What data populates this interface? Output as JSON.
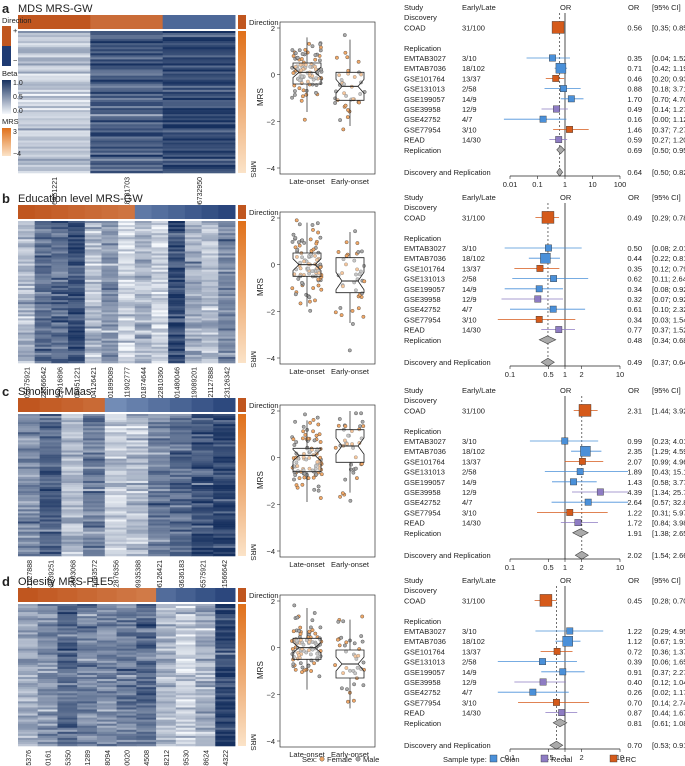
{
  "colors": {
    "direction_pos": "#c0561f",
    "direction_neg": "#1f3b73",
    "beta_high": "#16305f",
    "beta_low": "#f5f8fc",
    "mrs_high": "#e0701a",
    "mrs_low": "#fbe3c8",
    "female": "#f0a868",
    "male": "#a8a8a8",
    "colon": "#4a90d9",
    "rectal": "#8e7cc3",
    "crc": "#d55a1a",
    "or_line": "#444444"
  },
  "legend_heatmap": {
    "direction_label": "Direction",
    "direction_plus": "+",
    "direction_minus": "−",
    "beta_label": "Beta",
    "beta_ticks": [
      "1.0",
      "0.5",
      "0.0"
    ],
    "mrs_label": "MRS",
    "mrs_ticks": [
      "3",
      "−4"
    ]
  },
  "forest_header": {
    "study": "Study",
    "early_late": "Early/Late",
    "or": "OR",
    "ci": "[95% CI]",
    "discovery": "Discovery",
    "replication": "Replication"
  },
  "studies": [
    "COAD",
    "EMTAB3027",
    "EMTAB7036",
    "GSE101764",
    "GSE131013",
    "GSE199057",
    "GSE39958",
    "GSE42752",
    "GSE77954",
    "READ",
    "Replication",
    "Discovery and Replication"
  ],
  "early_late": [
    "31/100",
    "3/10",
    "18/102",
    "13/37",
    "2/58",
    "14/9",
    "12/9",
    "4/7",
    "3/10",
    "14/30"
  ],
  "sample_types": [
    "CRC",
    "Colon",
    "Colon",
    "CRC",
    "Colon",
    "Colon",
    "Rectal",
    "Colon",
    "CRC",
    "Rectal"
  ],
  "boxplot_axis": {
    "ylabel": "MRS",
    "xlabels": [
      "Late-onset",
      "Early-onset"
    ]
  },
  "legend_bottom": {
    "sex_label": "Sex:",
    "female": "Female",
    "male": "Male",
    "sample_label": "Sample type:",
    "colon": "Colon",
    "rectal": "Rectal",
    "crc": "CRC"
  },
  "chart_data": [
    {
      "panel": "a",
      "title": "MDS MRS-GW",
      "type": "heatmap",
      "cpgs": [
        "cg05951221",
        "cg18181703",
        "cg06732950"
      ],
      "direction": [
        "+",
        "+",
        "−"
      ],
      "boxplot": {
        "ylim": [
          -4,
          2
        ],
        "yticks": [
          2,
          0,
          -2,
          -4
        ],
        "late": {
          "median": 0.1,
          "q1": -0.4,
          "q3": 0.5,
          "whisker_low": -1.6,
          "whisker_high": 1.6
        },
        "early": {
          "median": -0.5,
          "q1": -1.1,
          "q3": 0.1,
          "whisker_low": -2.2,
          "whisker_high": 1.5
        }
      },
      "forest": {
        "scale": "log",
        "ticks": [
          0.01,
          0.1,
          1,
          10,
          100
        ],
        "tick_labels": [
          "0.01",
          "0.1",
          "1",
          "10",
          "100"
        ],
        "rows": [
          {
            "study": "COAD",
            "or": 0.56,
            "ci": [
              0.35,
              0.85
            ],
            "or_text": "0.56",
            "ci_text": "[0.35; 0.85]"
          },
          {
            "study": "EMTAB3027",
            "or": 0.35,
            "ci": [
              0.04,
              1.52
            ],
            "or_text": "0.35",
            "ci_text": "[0.04; 1.52]"
          },
          {
            "study": "EMTAB7036",
            "or": 0.71,
            "ci": [
              0.42,
              1.19
            ],
            "or_text": "0.71",
            "ci_text": "[0.42; 1.19]"
          },
          {
            "study": "GSE101764",
            "or": 0.46,
            "ci": [
              0.2,
              0.93
            ],
            "or_text": "0.46",
            "ci_text": "[0.20; 0.93]"
          },
          {
            "study": "GSE131013",
            "or": 0.88,
            "ci": [
              0.18,
              3.71
            ],
            "or_text": "0.88",
            "ci_text": "[0.18; 3.71]"
          },
          {
            "study": "GSE199057",
            "or": 1.7,
            "ci": [
              0.7,
              4.7
            ],
            "or_text": "1.70",
            "ci_text": "[0.70; 4.70]"
          },
          {
            "study": "GSE39958",
            "or": 0.49,
            "ci": [
              0.14,
              1.27
            ],
            "or_text": "0.49",
            "ci_text": "[0.14; 1.27]"
          },
          {
            "study": "GSE42752",
            "or": 0.16,
            "ci": [
              0.0,
              1.12
            ],
            "or_text": "0.16",
            "ci_text": "[0.00; 1.12]"
          },
          {
            "study": "GSE77954",
            "or": 1.46,
            "ci": [
              0.37,
              7.27
            ],
            "or_text": "1.46",
            "ci_text": "[0.37; 7.27]"
          },
          {
            "study": "READ",
            "or": 0.59,
            "ci": [
              0.27,
              1.2
            ],
            "or_text": "0.59",
            "ci_text": "[0.27; 1.20]"
          },
          {
            "study": "Replication",
            "or": 0.69,
            "ci": [
              0.5,
              0.95
            ],
            "or_text": "0.69",
            "ci_text": "[0.50; 0.95]"
          },
          {
            "study": "Discovery and Replication",
            "or": 0.64,
            "ci": [
              0.5,
              0.82
            ],
            "or_text": "0.64",
            "ci_text": "[0.50; 0.82]"
          }
        ]
      }
    },
    {
      "panel": "b",
      "title": "Education level MRS-GW",
      "type": "heatmap",
      "cpgs": [
        "cg05575921",
        "cg21566642",
        "cg23916896",
        "cg05951221",
        "cg04126421",
        "cg01899089",
        "cg11902777",
        "cg01874644",
        "cg22810360",
        "cg01480046",
        "cg19089201",
        "cg21127888",
        "cg23126342"
      ],
      "direction": [
        "+",
        "+",
        "+",
        "+",
        "+",
        "+",
        "+",
        "−",
        "−",
        "−",
        "−",
        "−",
        "−"
      ],
      "boxplot": {
        "ylim": [
          -4,
          2
        ],
        "yticks": [
          2,
          0,
          -2,
          -4
        ],
        "late": {
          "median": 0.0,
          "q1": -0.5,
          "q3": 0.5,
          "whisker_low": -1.8,
          "whisker_high": 1.8
        },
        "early": {
          "median": -0.7,
          "q1": -1.2,
          "q3": 0.3,
          "whisker_low": -2.5,
          "whisker_high": 1.4
        }
      },
      "forest": {
        "scale": "log",
        "ticks": [
          0.1,
          0.5,
          1,
          2,
          10
        ],
        "tick_labels": [
          "0.1",
          "0.5",
          "1",
          "2",
          "10"
        ],
        "rows": [
          {
            "study": "COAD",
            "or": 0.49,
            "ci": [
              0.29,
              0.78
            ],
            "or_text": "0.49",
            "ci_text": "[0.29; 0.78]"
          },
          {
            "study": "EMTAB3027",
            "or": 0.5,
            "ci": [
              0.08,
              2.01
            ],
            "or_text": "0.50",
            "ci_text": "[0.08; 2.01]"
          },
          {
            "study": "EMTAB7036",
            "or": 0.44,
            "ci": [
              0.22,
              0.81
            ],
            "or_text": "0.44",
            "ci_text": "[0.22; 0.81]"
          },
          {
            "study": "GSE101764",
            "or": 0.35,
            "ci": [
              0.12,
              0.79
            ],
            "or_text": "0.35",
            "ci_text": "[0.12; 0.79]"
          },
          {
            "study": "GSE131013",
            "or": 0.62,
            "ci": [
              0.11,
              2.64
            ],
            "or_text": "0.62",
            "ci_text": "[0.11; 2.64]"
          },
          {
            "study": "GSE199057",
            "or": 0.34,
            "ci": [
              0.08,
              0.92
            ],
            "or_text": "0.34",
            "ci_text": "[0.08; 0.92]"
          },
          {
            "study": "GSE39958",
            "or": 0.32,
            "ci": [
              0.07,
              0.92
            ],
            "or_text": "0.32",
            "ci_text": "[0.07; 0.92]"
          },
          {
            "study": "GSE42752",
            "or": 0.61,
            "ci": [
              0.1,
              2.32
            ],
            "or_text": "0.61",
            "ci_text": "[0.10; 2.32]"
          },
          {
            "study": "GSE77954",
            "or": 0.34,
            "ci": [
              0.03,
              1.54
            ],
            "or_text": "0.34",
            "ci_text": "[0.03; 1.54]"
          },
          {
            "study": "READ",
            "or": 0.77,
            "ci": [
              0.37,
              1.52
            ],
            "or_text": "0.77",
            "ci_text": "[0.37; 1.52]"
          },
          {
            "study": "Replication",
            "or": 0.48,
            "ci": [
              0.34,
              0.68
            ],
            "or_text": "0.48",
            "ci_text": "[0.34; 0.68]"
          },
          {
            "study": "Discovery and Replication",
            "or": 0.49,
            "ci": [
              0.37,
              0.64
            ],
            "or_text": "0.49",
            "ci_text": "[0.37; 0.64]"
          }
        ]
      }
    },
    {
      "panel": "c",
      "title": "Smoking-Maas",
      "type": "heatmap",
      "cpgs": [
        "cg21127888",
        "cg13039251",
        "cg12803068",
        "cg15693572",
        "cg12876356",
        "cg09935388",
        "cg06126421",
        "cg03636183",
        "cg05575921",
        "cg21566642"
      ],
      "direction": [
        "+",
        "+",
        "+",
        "+",
        "−",
        "−",
        "−",
        "−",
        "−",
        "−"
      ],
      "boxplot": {
        "ylim": [
          -4,
          2
        ],
        "yticks": [
          2,
          0,
          -2,
          -4
        ],
        "late": {
          "median": 0.1,
          "q1": -0.6,
          "q3": 0.4,
          "whisker_low": -1.9,
          "whisker_high": 1.6
        },
        "early": {
          "median": 0.5,
          "q1": -0.2,
          "q3": 1.2,
          "whisker_low": -1.5,
          "whisker_high": 2.0
        }
      },
      "forest": {
        "scale": "log",
        "ticks": [
          0.1,
          0.5,
          1,
          2,
          10
        ],
        "tick_labels": [
          "0.1",
          "0.5",
          "1",
          "2",
          "10"
        ],
        "rows": [
          {
            "study": "COAD",
            "or": 2.31,
            "ci": [
              1.44,
              3.92
            ],
            "or_text": "2.31",
            "ci_text": "[1.44; 3.92]"
          },
          {
            "study": "EMTAB3027",
            "or": 0.99,
            "ci": [
              0.23,
              4.01
            ],
            "or_text": "0.99",
            "ci_text": "[0.23; 4.01]"
          },
          {
            "study": "EMTAB7036",
            "or": 2.35,
            "ci": [
              1.29,
              4.59
            ],
            "or_text": "2.35",
            "ci_text": "[1.29; 4.59]"
          },
          {
            "study": "GSE101764",
            "or": 2.07,
            "ci": [
              0.99,
              4.96
            ],
            "or_text": "2.07",
            "ci_text": "[0.99; 4.96]"
          },
          {
            "study": "GSE131013",
            "or": 1.89,
            "ci": [
              0.43,
              15.15
            ],
            "or_text": "1.89",
            "ci_text": "[0.43; 15.15]"
          },
          {
            "study": "GSE199057",
            "or": 1.43,
            "ci": [
              0.58,
              3.77
            ],
            "or_text": "1.43",
            "ci_text": "[0.58; 3.77]"
          },
          {
            "study": "GSE39958",
            "or": 4.39,
            "ci": [
              1.34,
              25.74
            ],
            "or_text": "4.39",
            "ci_text": "[1.34; 25.74]"
          },
          {
            "study": "GSE42752",
            "or": 2.64,
            "ci": [
              0.57,
              32.89
            ],
            "or_text": "2.64",
            "ci_text": "[0.57; 32.89]"
          },
          {
            "study": "GSE77954",
            "or": 1.22,
            "ci": [
              0.31,
              5.97
            ],
            "or_text": "1.22",
            "ci_text": "[0.31; 5.97]"
          },
          {
            "study": "READ",
            "or": 1.72,
            "ci": [
              0.84,
              3.98
            ],
            "or_text": "1.72",
            "ci_text": "[0.84; 3.98]"
          },
          {
            "study": "Replication",
            "or": 1.91,
            "ci": [
              1.38,
              2.65
            ],
            "or_text": "1.91",
            "ci_text": "[1.38; 2.65]"
          },
          {
            "study": "Discovery and Replication",
            "or": 2.02,
            "ci": [
              1.54,
              2.66
            ],
            "or_text": "2.02",
            "ci_text": "[1.54; 2.66]"
          }
        ]
      }
    },
    {
      "panel": "d",
      "title": "Obesity MRS-P1E5",
      "type": "heatmap",
      "cpgs": [
        "cg14465376",
        "cg08500161",
        "cg20655350",
        "cg13001289",
        "cg06478094",
        "cg03660020",
        "cg05834508",
        "cg02898212",
        "cg17139530",
        "cg04498624",
        "cg23634322"
      ],
      "direction": [
        "+",
        "+",
        "+",
        "+",
        "+",
        "+",
        "+",
        "−",
        "−",
        "−",
        "−"
      ],
      "boxplot": {
        "ylim": [
          -4,
          2
        ],
        "yticks": [
          2,
          0,
          -2,
          -4
        ],
        "late": {
          "median": 0.0,
          "q1": -0.5,
          "q3": 0.4,
          "whisker_low": -1.8,
          "whisker_high": 1.7
        },
        "early": {
          "median": -0.7,
          "q1": -1.3,
          "q3": -0.1,
          "whisker_low": -2.6,
          "whisker_high": 1.2
        }
      },
      "forest": {
        "scale": "log",
        "ticks": [
          0.1,
          0.5,
          1,
          2,
          10
        ],
        "tick_labels": [
          "0.1",
          "0.5",
          "1",
          "2",
          "10"
        ],
        "rows": [
          {
            "study": "COAD",
            "or": 0.45,
            "ci": [
              0.28,
              0.7
            ],
            "or_text": "0.45",
            "ci_text": "[0.28; 0.70]"
          },
          {
            "study": "EMTAB3027",
            "or": 1.22,
            "ci": [
              0.29,
              4.95
            ],
            "or_text": "1.22",
            "ci_text": "[0.29; 4.95]"
          },
          {
            "study": "EMTAB7036",
            "or": 1.12,
            "ci": [
              0.67,
              1.91
            ],
            "or_text": "1.12",
            "ci_text": "[0.67; 1.91]"
          },
          {
            "study": "GSE101764",
            "or": 0.72,
            "ci": [
              0.36,
              1.37
            ],
            "or_text": "0.72",
            "ci_text": "[0.36; 1.37]"
          },
          {
            "study": "GSE131013",
            "or": 0.39,
            "ci": [
              0.06,
              1.65
            ],
            "or_text": "0.39",
            "ci_text": "[0.06; 1.65]"
          },
          {
            "study": "GSE199057",
            "or": 0.91,
            "ci": [
              0.37,
              2.27
            ],
            "or_text": "0.91",
            "ci_text": "[0.37; 2.27]"
          },
          {
            "study": "GSE39958",
            "or": 0.4,
            "ci": [
              0.12,
              1.04
            ],
            "or_text": "0.40",
            "ci_text": "[0.12; 1.04]"
          },
          {
            "study": "GSE42752",
            "or": 0.26,
            "ci": [
              0.02,
              1.17
            ],
            "or_text": "0.26",
            "ci_text": "[0.02; 1.17]"
          },
          {
            "study": "GSE77954",
            "or": 0.7,
            "ci": [
              0.14,
              2.74
            ],
            "or_text": "0.70",
            "ci_text": "[0.14; 2.74]"
          },
          {
            "study": "READ",
            "or": 0.87,
            "ci": [
              0.44,
              1.67
            ],
            "or_text": "0.87",
            "ci_text": "[0.44; 1.67]"
          },
          {
            "study": "Replication",
            "or": 0.81,
            "ci": [
              0.61,
              1.08
            ],
            "or_text": "0.81",
            "ci_text": "[0.61; 1.08]"
          },
          {
            "study": "Discovery and Replication",
            "or": 0.7,
            "ci": [
              0.53,
              0.91
            ],
            "or_text": "0.70",
            "ci_text": "[0.53; 0.91]"
          }
        ]
      }
    }
  ]
}
